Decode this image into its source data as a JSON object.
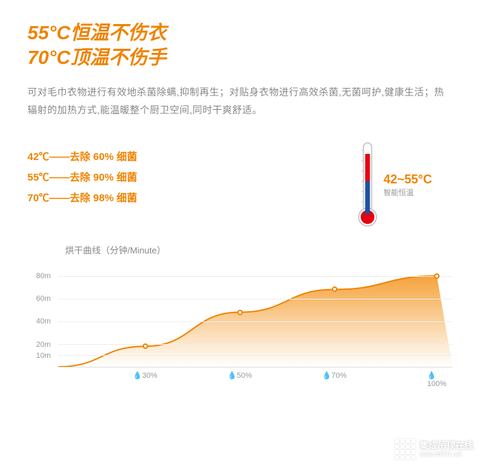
{
  "title": {
    "line1": "55°C恒温不伤衣",
    "line2": "70°C顶温不伤手",
    "color": "#f08300",
    "fontsize": 28
  },
  "description": "可对毛巾衣物进行有效地杀菌除螨,抑制再生；对贴身衣物进行高效杀菌,无菌呵护,健康生活；热辐射的加热方式,能温暖整个厨卫空间,同时干爽舒适。",
  "bullets": [
    "42℃——去除 60% 细菌",
    "55℃——去除 90% 细菌",
    "70℃——去除 98% 细菌"
  ],
  "bullet_color": "#f08300",
  "thermometer": {
    "range_label": "42~55°C",
    "sub_label": "智能恒温",
    "outline_color": "#c0c0c0",
    "red_color": "#e60012",
    "blue_color": "#1e50a2",
    "bulb_fill_ratio": 0.35,
    "red_top_ratio": 0.55
  },
  "chart": {
    "type": "area",
    "title": "烘干曲线（分钟/Minute）",
    "y_ticks": [
      {
        "label": "80m",
        "value": 80
      },
      {
        "label": "60m",
        "value": 60
      },
      {
        "label": "40m",
        "value": 40
      },
      {
        "label": "20m",
        "value": 20
      },
      {
        "label": "10m",
        "value": 10
      }
    ],
    "y_max": 90,
    "x_ticks": [
      {
        "label": "💧30%",
        "pos": 0.22
      },
      {
        "label": "💧50%",
        "pos": 0.46
      },
      {
        "label": "💧70%",
        "pos": 0.7
      },
      {
        "label": "💧100%",
        "pos": 0.96
      }
    ],
    "points": [
      {
        "x": 0.22,
        "y": 18
      },
      {
        "x": 0.46,
        "y": 48
      },
      {
        "x": 0.7,
        "y": 68
      },
      {
        "x": 0.96,
        "y": 80
      }
    ],
    "curve_start": {
      "x": 0.0,
      "y": 0
    },
    "fill_top_color": "#f5a33c",
    "fill_bottom_color": "#ffffff",
    "line_color": "#f08300",
    "line_width": 2,
    "point_border": "#f08300",
    "point_fill": "#ffffff",
    "grid_color": "#eeeeee",
    "axis_color": "#dddddd",
    "label_color": "#999999",
    "label_fontsize": 11
  },
  "watermark": {
    "text": "集成吊顶在线",
    "url": "www.dd001.net"
  }
}
